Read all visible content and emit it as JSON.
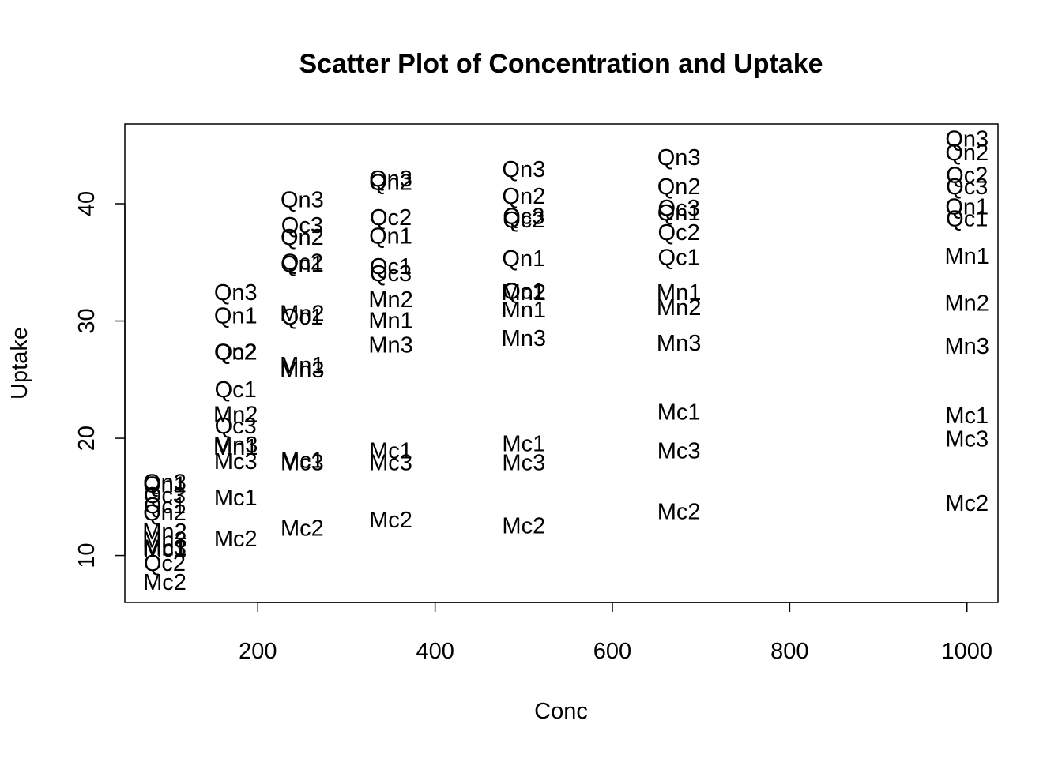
{
  "chart_data": {
    "type": "scatter",
    "title": "Scatter Plot of Concentration and Uptake",
    "xlabel": "Conc",
    "ylabel": "Uptake",
    "xlim": [
      50,
      1035
    ],
    "ylim": [
      6.0,
      46.8
    ],
    "xticks": [
      200,
      400,
      600,
      800,
      1000
    ],
    "yticks": [
      10,
      20,
      30,
      40
    ],
    "marker": "text-labels",
    "points": [
      {
        "label": "Qn1",
        "x": 95,
        "y": 16.0
      },
      {
        "label": "Qn1",
        "x": 175,
        "y": 30.4
      },
      {
        "label": "Qn1",
        "x": 250,
        "y": 34.8
      },
      {
        "label": "Qn1",
        "x": 350,
        "y": 37.2
      },
      {
        "label": "Qn1",
        "x": 500,
        "y": 35.3
      },
      {
        "label": "Qn1",
        "x": 675,
        "y": 39.2
      },
      {
        "label": "Qn1",
        "x": 1000,
        "y": 39.7
      },
      {
        "label": "Qn2",
        "x": 95,
        "y": 13.6
      },
      {
        "label": "Qn2",
        "x": 175,
        "y": 27.3
      },
      {
        "label": "Qn2",
        "x": 250,
        "y": 37.1
      },
      {
        "label": "Qn2",
        "x": 350,
        "y": 41.8
      },
      {
        "label": "Qn2",
        "x": 500,
        "y": 40.6
      },
      {
        "label": "Qn2",
        "x": 675,
        "y": 41.4
      },
      {
        "label": "Qn2",
        "x": 1000,
        "y": 44.3
      },
      {
        "label": "Qn3",
        "x": 95,
        "y": 16.2
      },
      {
        "label": "Qn3",
        "x": 175,
        "y": 32.4
      },
      {
        "label": "Qn3",
        "x": 250,
        "y": 40.3
      },
      {
        "label": "Qn3",
        "x": 350,
        "y": 42.1
      },
      {
        "label": "Qn3",
        "x": 500,
        "y": 42.9
      },
      {
        "label": "Qn3",
        "x": 675,
        "y": 43.9
      },
      {
        "label": "Qn3",
        "x": 1000,
        "y": 45.5
      },
      {
        "label": "Qc1",
        "x": 95,
        "y": 14.2
      },
      {
        "label": "Qc1",
        "x": 175,
        "y": 24.1
      },
      {
        "label": "Qc1",
        "x": 250,
        "y": 30.3
      },
      {
        "label": "Qc1",
        "x": 350,
        "y": 34.6
      },
      {
        "label": "Qc1",
        "x": 500,
        "y": 32.5
      },
      {
        "label": "Qc1",
        "x": 675,
        "y": 35.4
      },
      {
        "label": "Qc1",
        "x": 1000,
        "y": 38.7
      },
      {
        "label": "Qc2",
        "x": 95,
        "y": 9.3
      },
      {
        "label": "Qc2",
        "x": 175,
        "y": 27.3
      },
      {
        "label": "Qc2",
        "x": 250,
        "y": 35.0
      },
      {
        "label": "Qc2",
        "x": 350,
        "y": 38.8
      },
      {
        "label": "Qc2",
        "x": 500,
        "y": 38.6
      },
      {
        "label": "Qc2",
        "x": 675,
        "y": 37.5
      },
      {
        "label": "Qc2",
        "x": 1000,
        "y": 42.4
      },
      {
        "label": "Qc3",
        "x": 95,
        "y": 15.1
      },
      {
        "label": "Qc3",
        "x": 175,
        "y": 21.0
      },
      {
        "label": "Qc3",
        "x": 250,
        "y": 38.1
      },
      {
        "label": "Qc3",
        "x": 350,
        "y": 34.0
      },
      {
        "label": "Qc3",
        "x": 500,
        "y": 38.9
      },
      {
        "label": "Qc3",
        "x": 675,
        "y": 39.6
      },
      {
        "label": "Qc3",
        "x": 1000,
        "y": 41.4
      },
      {
        "label": "Mn1",
        "x": 95,
        "y": 10.6
      },
      {
        "label": "Mn1",
        "x": 175,
        "y": 19.2
      },
      {
        "label": "Mn1",
        "x": 250,
        "y": 26.2
      },
      {
        "label": "Mn1",
        "x": 350,
        "y": 30.0
      },
      {
        "label": "Mn1",
        "x": 500,
        "y": 30.9
      },
      {
        "label": "Mn1",
        "x": 675,
        "y": 32.4
      },
      {
        "label": "Mn1",
        "x": 1000,
        "y": 35.5
      },
      {
        "label": "Mn2",
        "x": 95,
        "y": 12.0
      },
      {
        "label": "Mn2",
        "x": 175,
        "y": 22.0
      },
      {
        "label": "Mn2",
        "x": 250,
        "y": 30.6
      },
      {
        "label": "Mn2",
        "x": 350,
        "y": 31.8
      },
      {
        "label": "Mn2",
        "x": 500,
        "y": 32.4
      },
      {
        "label": "Mn2",
        "x": 675,
        "y": 31.1
      },
      {
        "label": "Mn2",
        "x": 1000,
        "y": 31.5
      },
      {
        "label": "Mn3",
        "x": 95,
        "y": 11.3
      },
      {
        "label": "Mn3",
        "x": 175,
        "y": 19.4
      },
      {
        "label": "Mn3",
        "x": 250,
        "y": 25.8
      },
      {
        "label": "Mn3",
        "x": 350,
        "y": 27.9
      },
      {
        "label": "Mn3",
        "x": 500,
        "y": 28.5
      },
      {
        "label": "Mn3",
        "x": 675,
        "y": 28.1
      },
      {
        "label": "Mn3",
        "x": 1000,
        "y": 27.8
      },
      {
        "label": "Mc1",
        "x": 95,
        "y": 10.5
      },
      {
        "label": "Mc1",
        "x": 175,
        "y": 14.9
      },
      {
        "label": "Mc1",
        "x": 250,
        "y": 18.1
      },
      {
        "label": "Mc1",
        "x": 350,
        "y": 18.9
      },
      {
        "label": "Mc1",
        "x": 500,
        "y": 19.5
      },
      {
        "label": "Mc1",
        "x": 675,
        "y": 22.2
      },
      {
        "label": "Mc1",
        "x": 1000,
        "y": 21.9
      },
      {
        "label": "Mc2",
        "x": 95,
        "y": 7.7
      },
      {
        "label": "Mc2",
        "x": 175,
        "y": 11.4
      },
      {
        "label": "Mc2",
        "x": 250,
        "y": 12.3
      },
      {
        "label": "Mc2",
        "x": 350,
        "y": 13.0
      },
      {
        "label": "Mc2",
        "x": 500,
        "y": 12.5
      },
      {
        "label": "Mc2",
        "x": 675,
        "y": 13.7
      },
      {
        "label": "Mc2",
        "x": 1000,
        "y": 14.4
      },
      {
        "label": "Mc3",
        "x": 95,
        "y": 10.6
      },
      {
        "label": "Mc3",
        "x": 175,
        "y": 18.0
      },
      {
        "label": "Mc3",
        "x": 250,
        "y": 17.9
      },
      {
        "label": "Mc3",
        "x": 350,
        "y": 17.9
      },
      {
        "label": "Mc3",
        "x": 500,
        "y": 17.9
      },
      {
        "label": "Mc3",
        "x": 675,
        "y": 18.9
      },
      {
        "label": "Mc3",
        "x": 1000,
        "y": 19.9
      }
    ]
  }
}
